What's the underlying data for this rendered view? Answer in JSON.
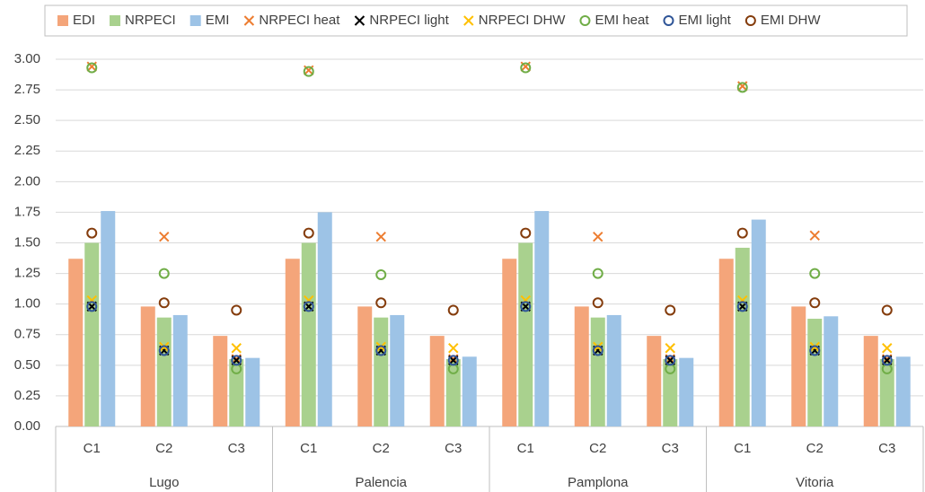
{
  "chart_data": {
    "type": "bar",
    "categories": [
      "C1",
      "C2",
      "C3",
      "C1",
      "C2",
      "C3",
      "C1",
      "C2",
      "C3",
      "C1",
      "C2",
      "C3"
    ],
    "groups": [
      "Lugo",
      "Palencia",
      "Pamplona",
      "Vitoria"
    ],
    "ylim": [
      0,
      3
    ],
    "yticks": [
      {
        "value": 0,
        "label": "0.00"
      },
      {
        "value": 0.25,
        "label": "0.25"
      },
      {
        "value": 0.5,
        "label": "0.50"
      },
      {
        "value": 0.75,
        "label": "0.75"
      },
      {
        "value": 1,
        "label": "1.00"
      },
      {
        "value": 1.25,
        "label": "1.25"
      },
      {
        "value": 1.5,
        "label": "1.50"
      },
      {
        "value": 1.75,
        "label": "1.75"
      },
      {
        "value": 2,
        "label": "2.00"
      },
      {
        "value": 2.25,
        "label": "2.25"
      },
      {
        "value": 2.5,
        "label": "2.50"
      },
      {
        "value": 2.75,
        "label": "2.75"
      },
      {
        "value": 3,
        "label": "3.00"
      }
    ],
    "grid": true,
    "series": [
      {
        "name": "EDI",
        "color": "#f4a57a",
        "values": [
          1.37,
          0.98,
          0.74,
          1.37,
          0.98,
          0.74,
          1.37,
          0.98,
          0.74,
          1.37,
          0.98,
          0.74
        ]
      },
      {
        "name": "NRPECI",
        "color": "#a9d18e",
        "values": [
          1.5,
          0.89,
          0.55,
          1.5,
          0.89,
          0.55,
          1.5,
          0.89,
          0.55,
          1.46,
          0.88,
          0.55
        ]
      },
      {
        "name": "EMI",
        "color": "#9dc3e6",
        "values": [
          1.76,
          0.91,
          0.56,
          1.75,
          0.91,
          0.57,
          1.76,
          0.91,
          0.56,
          1.69,
          0.9,
          0.57
        ]
      },
      {
        "name": "NRPECI heat",
        "color": "#ed7d31",
        "marker": "x",
        "values": [
          2.94,
          1.55,
          0.55,
          2.91,
          1.55,
          0.55,
          2.94,
          1.55,
          0.55,
          2.78,
          1.56,
          0.55
        ]
      },
      {
        "name": "NRPECI light",
        "color": "#000000",
        "marker": "x",
        "values": [
          0.98,
          0.62,
          0.54,
          0.98,
          0.62,
          0.54,
          0.98,
          0.62,
          0.54,
          0.98,
          0.62,
          0.54
        ]
      },
      {
        "name": "NRPECI DHW",
        "color": "#ffc000",
        "marker": "x",
        "values": [
          1.03,
          0.65,
          0.64,
          1.03,
          0.65,
          0.64,
          1.03,
          0.65,
          0.64,
          1.03,
          0.65,
          0.64
        ]
      },
      {
        "name": "EMI heat",
        "color": "#70ad47",
        "marker": "o",
        "values": [
          2.93,
          1.25,
          0.47,
          2.9,
          1.24,
          0.47,
          2.93,
          1.25,
          0.47,
          2.77,
          1.25,
          0.47
        ]
      },
      {
        "name": "EMI light",
        "color": "#2f5597",
        "marker": "o",
        "values": [
          0.98,
          0.62,
          0.54,
          0.98,
          0.62,
          0.54,
          0.98,
          0.62,
          0.54,
          0.98,
          0.62,
          0.54
        ]
      },
      {
        "name": "EMI DHW",
        "color": "#843c0c",
        "marker": "o",
        "values": [
          1.58,
          1.01,
          0.95,
          1.58,
          1.01,
          0.95,
          1.58,
          1.01,
          0.95,
          1.58,
          1.01,
          0.95
        ]
      }
    ]
  }
}
